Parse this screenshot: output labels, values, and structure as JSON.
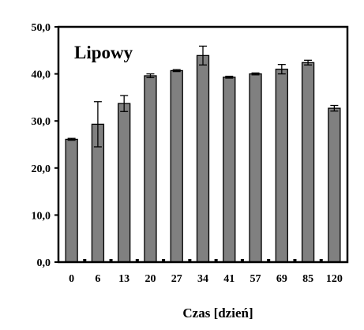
{
  "chart_data": {
    "type": "bar",
    "title": "Lipowy",
    "xlabel": "Czas [dzień]",
    "ylabel": "",
    "categories": [
      "0",
      "6",
      "13",
      "20",
      "27",
      "34",
      "41",
      "57",
      "69",
      "85",
      "120"
    ],
    "series": [
      {
        "values": [
          26.1,
          29.3,
          33.7,
          39.6,
          40.7,
          43.9,
          39.3,
          40.0,
          41.0,
          42.4,
          32.7
        ],
        "errors": [
          0.2,
          4.8,
          1.7,
          0.4,
          0.2,
          2.0,
          0.2,
          0.2,
          1.0,
          0.5,
          0.6
        ],
        "color": "#808080"
      }
    ],
    "ylim": [
      0,
      50
    ],
    "yticks": [
      "0,0",
      "10,0",
      "20,0",
      "30,0",
      "40,0",
      "50,0"
    ],
    "grid": false,
    "legend": "none"
  }
}
